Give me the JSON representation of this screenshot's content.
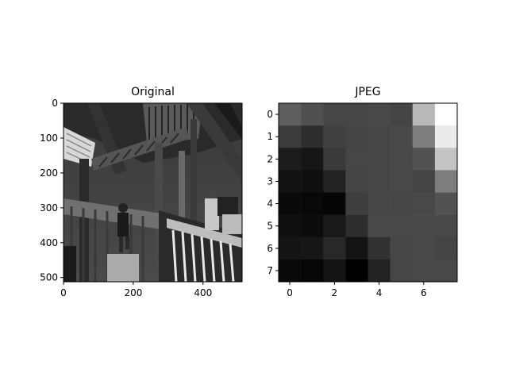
{
  "chart_data": [
    {
      "type": "image",
      "title": "Original",
      "xlabel": "",
      "ylabel": "",
      "xlim": [
        0,
        512
      ],
      "ylim": [
        512,
        0
      ],
      "colormap": "gray",
      "x_ticks": [
        0,
        200,
        400
      ],
      "y_ticks": [
        0,
        100,
        200,
        300,
        400,
        500
      ],
      "x_tick_labels": [
        "0",
        "200",
        "400"
      ],
      "y_tick_labels": [
        "0",
        "100",
        "200",
        "300",
        "400",
        "500"
      ]
    },
    {
      "type": "heatmap",
      "title": "JPEG",
      "xlabel": "",
      "ylabel": "",
      "xlim": [
        -0.5,
        7.5
      ],
      "ylim": [
        7.5,
        -0.5
      ],
      "colormap": "gray",
      "x_ticks": [
        0,
        2,
        4,
        6
      ],
      "y_ticks": [
        0,
        1,
        2,
        3,
        4,
        5,
        6,
        7
      ],
      "x_tick_labels": [
        "0",
        "2",
        "4",
        "6"
      ],
      "y_tick_labels": [
        "0",
        "1",
        "2",
        "3",
        "4",
        "5",
        "6",
        "7"
      ],
      "values": [
        [
          95,
          80,
          70,
          70,
          72,
          68,
          185,
          255
        ],
        [
          60,
          45,
          65,
          68,
          70,
          72,
          125,
          235
        ],
        [
          28,
          22,
          58,
          70,
          70,
          72,
          82,
          195
        ],
        [
          18,
          15,
          35,
          68,
          70,
          72,
          68,
          125
        ],
        [
          10,
          8,
          5,
          62,
          70,
          70,
          72,
          82
        ],
        [
          15,
          12,
          25,
          45,
          72,
          72,
          72,
          72
        ],
        [
          20,
          22,
          40,
          20,
          50,
          70,
          72,
          68
        ],
        [
          8,
          6,
          20,
          0,
          35,
          70,
          72,
          72
        ]
      ]
    }
  ]
}
